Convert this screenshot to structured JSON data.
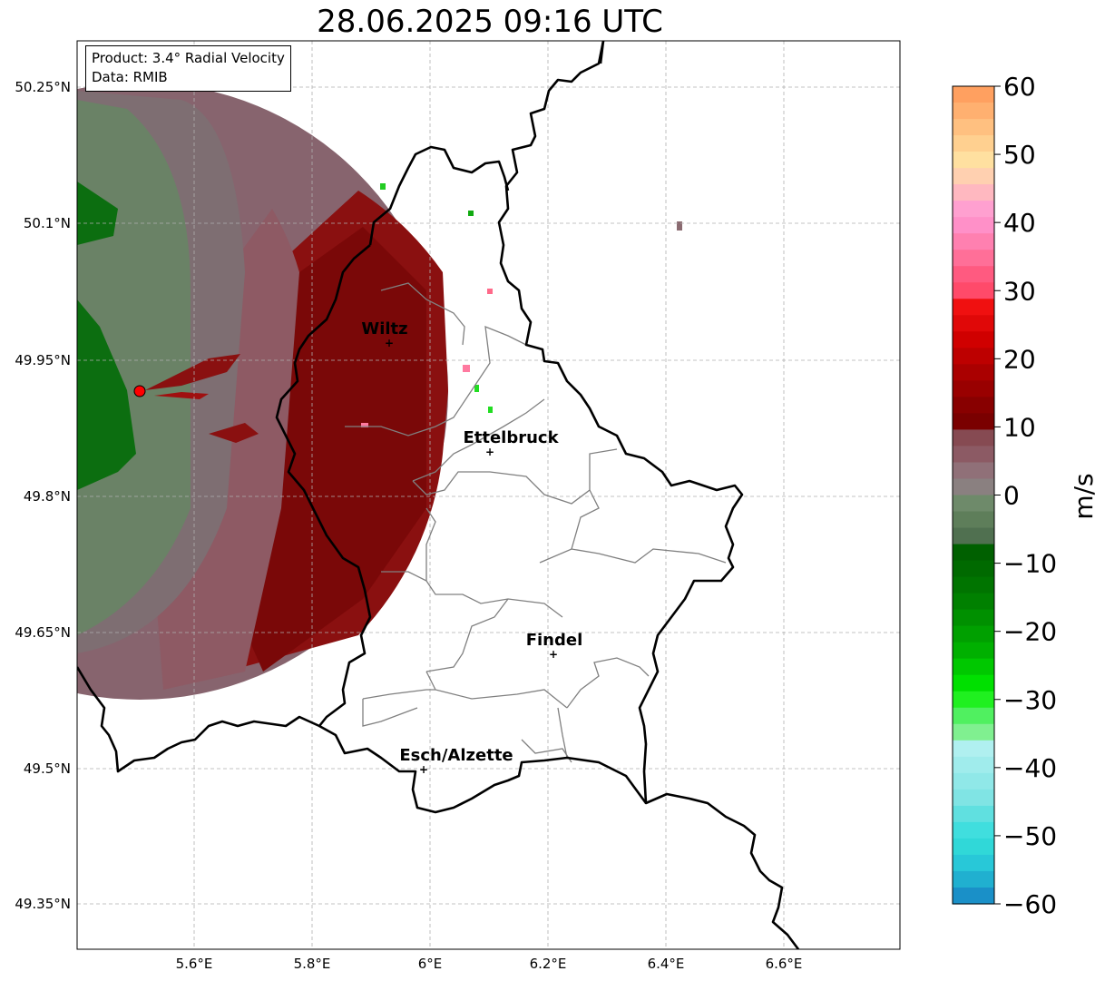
{
  "title": "28.06.2025 09:16 UTC",
  "info": {
    "product": "Product: 3.4° Radial Velocity",
    "data": "Data: RMIB"
  },
  "axes": {
    "lat_ticks": [
      "50.25°N",
      "50.1°N",
      "49.95°N",
      "49.8°N",
      "49.65°N",
      "49.5°N",
      "49.35°N"
    ],
    "lon_ticks": [
      "5.6°E",
      "5.8°E",
      "6°E",
      "6.2°E",
      "6.4°E",
      "6.6°E"
    ],
    "grid": true
  },
  "colorbar": {
    "label": "m/s",
    "ticks": [
      "60",
      "50",
      "40",
      "30",
      "20",
      "10",
      "0",
      "−10",
      "−20",
      "−30",
      "−40",
      "−50",
      "−60"
    ],
    "range": [
      -60,
      60
    ]
  },
  "cities": [
    {
      "name": "Wiltz",
      "lat": 49.966,
      "lon": 5.933
    },
    {
      "name": "Ettelbruck",
      "lat": 49.847,
      "lon": 6.104
    },
    {
      "name": "Findel",
      "lat": 49.627,
      "lon": 6.211
    },
    {
      "name": "Esch/Alzette",
      "lat": 49.5,
      "lon": 5.981
    }
  ],
  "radar_site": {
    "lat": 49.915,
    "lon": 5.505
  },
  "colors": {
    "border": "#000000",
    "canton_lines": "#808080",
    "radar_marker": "#ff0000"
  }
}
